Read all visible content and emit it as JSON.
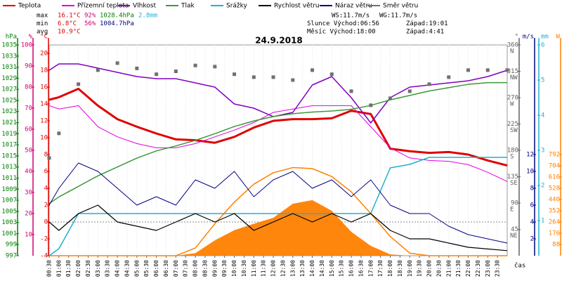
{
  "chart_data": {
    "type": "weather",
    "title": "24.9.2018",
    "x_label": "čas",
    "xlim": [
      0.5,
      24
    ],
    "x": [
      0.5,
      1,
      2,
      3,
      4,
      5,
      6,
      7,
      8,
      9,
      10,
      11,
      12,
      13,
      14,
      15,
      16,
      17,
      18,
      19,
      20,
      21,
      22,
      23,
      24
    ],
    "xticks": [
      {
        "value": 0.5,
        "label": "00:30"
      },
      {
        "value": 1,
        "label": "01:00"
      },
      {
        "value": 1.5,
        "label": "01:30"
      },
      {
        "value": 2,
        "label": "02:00"
      },
      {
        "value": 2.5,
        "label": "02:30"
      },
      {
        "value": 3,
        "label": "03:00"
      },
      {
        "value": 3.5,
        "label": "03:30"
      },
      {
        "value": 4,
        "label": "04:00"
      },
      {
        "value": 4.5,
        "label": "04:30"
      },
      {
        "value": 5,
        "label": "05:00"
      },
      {
        "value": 5.5,
        "label": "05:30"
      },
      {
        "value": 6,
        "label": "06:00"
      },
      {
        "value": 6.5,
        "label": "06:30"
      },
      {
        "value": 7,
        "label": "07:00"
      },
      {
        "value": 7.5,
        "label": "07:30"
      },
      {
        "value": 8,
        "label": "08:00"
      },
      {
        "value": 8.5,
        "label": "08:30"
      },
      {
        "value": 9,
        "label": "09:00"
      },
      {
        "value": 9.5,
        "label": "09:30"
      },
      {
        "value": 10,
        "label": "10:00"
      },
      {
        "value": 10.5,
        "label": "10:30"
      },
      {
        "value": 11,
        "label": "11:00"
      },
      {
        "value": 11.5,
        "label": "11:30"
      },
      {
        "value": 12,
        "label": "12:00"
      },
      {
        "value": 12.5,
        "label": "12:30"
      },
      {
        "value": 13,
        "label": "13:00"
      },
      {
        "value": 13.5,
        "label": "13:30"
      },
      {
        "value": 14,
        "label": "14:00"
      },
      {
        "value": 14.5,
        "label": "14:30"
      },
      {
        "value": 15,
        "label": "15:00"
      },
      {
        "value": 15.5,
        "label": "15:30"
      },
      {
        "value": 16,
        "label": "16:00"
      },
      {
        "value": 16.5,
        "label": "16:30"
      },
      {
        "value": 17,
        "label": "17:00"
      },
      {
        "value": 17.5,
        "label": "17:30"
      },
      {
        "value": 18,
        "label": "18:00"
      },
      {
        "value": 18.5,
        "label": "18:30"
      },
      {
        "value": 19,
        "label": "19:00"
      },
      {
        "value": 19.5,
        "label": "19:30"
      },
      {
        "value": 20,
        "label": "20:00"
      },
      {
        "value": 20.5,
        "label": "20:30"
      },
      {
        "value": 21,
        "label": "21:00"
      },
      {
        "value": 21.5,
        "label": "21:30"
      },
      {
        "value": 22,
        "label": "22:00"
      },
      {
        "value": 22.5,
        "label": "22:30"
      },
      {
        "value": 23,
        "label": "23:00"
      },
      {
        "value": 23.5,
        "label": "23:30"
      }
    ],
    "grid": true,
    "axes": [
      {
        "unit": "hPa",
        "color": "#008000",
        "lim": [
          997,
          1035
        ],
        "ticks": [
          997,
          999,
          1001,
          1003,
          1005,
          1007,
          1009,
          1011,
          1013,
          1015,
          1017,
          1019,
          1021,
          1023,
          1025,
          1027,
          1029,
          1031,
          1033,
          1035
        ]
      },
      {
        "unit": "%",
        "color": "#d0006f",
        "lim": [
          0,
          100
        ],
        "ticks": [
          10,
          20,
          30,
          40,
          50,
          60,
          70,
          80,
          90,
          100
        ]
      },
      {
        "unit": "°C",
        "color": "#e00000",
        "lim": [
          -4,
          21
        ],
        "ticks": [
          -4,
          -2,
          0,
          2,
          4,
          6,
          8,
          10,
          12,
          14,
          16,
          18,
          20
        ]
      },
      {
        "unit": "°",
        "color": "#606060",
        "lim": [
          0,
          360
        ],
        "ticks": [
          {
            "value": 45,
            "label": "NE"
          },
          {
            "value": 90,
            "label": "E"
          },
          {
            "value": 135,
            "label": "SE"
          },
          {
            "value": 180,
            "label": "S"
          },
          {
            "value": 225,
            "label": "SW"
          },
          {
            "value": 270,
            "label": "W"
          },
          {
            "value": 315,
            "label": "NW"
          },
          {
            "value": 360,
            "label": "N"
          }
        ]
      },
      {
        "unit": "m/s",
        "color": "#000080",
        "lim": [
          0,
          25
        ],
        "ticks": [
          2,
          4,
          6,
          8,
          10,
          12
        ]
      },
      {
        "unit": "mm",
        "color": "#20b0d0",
        "lim": [
          0,
          6
        ],
        "ticks": [
          1,
          2,
          3,
          4,
          5,
          6
        ]
      },
      {
        "unit": "W",
        "color": "#ff8000",
        "lim": [
          0,
          1650
        ],
        "ticks": [
          88,
          176,
          264,
          352,
          440,
          528,
          616,
          704,
          792
        ]
      }
    ],
    "series": [
      {
        "kind": "area",
        "color": "#ff8000",
        "axis": 6,
        "values": [
          0,
          0,
          0,
          0,
          0,
          0,
          0,
          0,
          20,
          120,
          200,
          250,
          297,
          407,
          435,
          352,
          187,
          77,
          10,
          0,
          0,
          0,
          0,
          0,
          0
        ]
      },
      {
        "kind": "line",
        "color": "#ff8000",
        "axis": 6,
        "values": [
          0,
          0,
          0,
          0,
          0,
          0,
          0,
          0,
          60,
          250,
          420,
          560,
          650,
          690,
          682,
          620,
          500,
          330,
          150,
          20,
          0,
          0,
          0,
          0,
          0
        ]
      },
      {
        "name": "Teplota",
        "kind": "line",
        "color": "#e00000",
        "axis": 2,
        "width": 3,
        "values": [
          14.5,
          14.8,
          15.8,
          13.8,
          12.2,
          11.3,
          10.5,
          9.8,
          9.7,
          9.4,
          10.1,
          11.2,
          12,
          12.2,
          12.2,
          12.3,
          13.2,
          12.8,
          8.7,
          8.4,
          8.2,
          8.3,
          8,
          7.3,
          6.7
        ]
      },
      {
        "name": "Přízemní teplota",
        "kind": "line",
        "color": "#e000e0",
        "axis": 2,
        "width": 1,
        "values": [
          13.8,
          13.4,
          13.8,
          11.3,
          10.1,
          9.3,
          8.8,
          8.8,
          9.3,
          10.1,
          10.9,
          11.8,
          13,
          13.4,
          13.8,
          13.8,
          13.8,
          11.3,
          8.8,
          7.6,
          7.3,
          7.2,
          6.8,
          5.9,
          4.8
        ]
      },
      {
        "name": "Vlhkost",
        "kind": "line",
        "color": "#8000c0",
        "axis": 1,
        "width": 1.5,
        "values": [
          88,
          91,
          91,
          89,
          87,
          85,
          84,
          84,
          82,
          80,
          72,
          70,
          66,
          68,
          81,
          85,
          75,
          63,
          75,
          80,
          81,
          82,
          83,
          85,
          88
        ]
      },
      {
        "name": "Tlak",
        "kind": "line",
        "color": "#3a9a3a",
        "axis": 0,
        "width": 1.5,
        "values": [
          1006.4,
          1007.6,
          1009.5,
          1011.4,
          1013,
          1014.6,
          1015.9,
          1016.8,
          1017.8,
          1019,
          1020.3,
          1021.3,
          1022.1,
          1022.6,
          1022.9,
          1023.1,
          1023.4,
          1024.1,
          1025.1,
          1025.9,
          1026.7,
          1027.3,
          1027.9,
          1028.2,
          1028.2
        ]
      },
      {
        "name": "Srážky",
        "kind": "line",
        "color": "#20b0d0",
        "axis": 5,
        "width": 1.5,
        "values": [
          0,
          0.2,
          1.2,
          1.2,
          1.2,
          1.2,
          1.2,
          1.2,
          1.2,
          1.2,
          1.2,
          1.2,
          1.2,
          1.2,
          1.2,
          1.2,
          1.2,
          1.2,
          2.5,
          2.6,
          2.8,
          2.8,
          2.8,
          2.8,
          2.8
        ]
      },
      {
        "name": "Rychlost větru",
        "kind": "line",
        "color": "#000000",
        "axis": 4,
        "width": 1.2,
        "values": [
          4,
          3,
          5,
          6,
          4,
          3.5,
          3,
          4,
          5,
          4,
          5,
          3,
          4,
          5,
          4,
          5,
          4,
          5,
          3,
          2,
          2,
          1.5,
          1,
          0.8,
          0.6
        ]
      },
      {
        "name": "Náraz větru",
        "kind": "line",
        "color": "#000080",
        "axis": 4,
        "width": 1,
        "values": [
          6,
          8,
          11,
          10,
          8,
          6,
          7,
          6,
          9,
          8,
          10,
          7,
          9,
          10,
          8,
          9,
          7,
          9,
          6,
          5,
          5,
          3.5,
          2.5,
          2,
          1.5
        ]
      },
      {
        "name": "Směr větru",
        "kind": "points",
        "color": "#707070",
        "axis": 3,
        "values": [
          167,
          209,
          293,
          317,
          329,
          320,
          310,
          315,
          325,
          323,
          310,
          305,
          305,
          300,
          317,
          310,
          281,
          257,
          269,
          281,
          293,
          305,
          317,
          317,
          317
        ]
      }
    ],
    "stats": [
      [
        {
          "text": "max",
          "color": "#000000"
        },
        {
          "text": "16.1°C",
          "color": "#e00000"
        },
        {
          "text": "92%",
          "color": "#d0006f"
        },
        {
          "text": "1028.4hPa",
          "color": "#008000"
        },
        {
          "text": "2.8mm",
          "color": "#20b0d0"
        }
      ],
      [
        {
          "text": "min",
          "color": "#000000"
        },
        {
          "text": "6.8°C",
          "color": "#e00000"
        },
        {
          "text": "56%",
          "color": "#d0006f"
        },
        {
          "text": "1004.7hPa",
          "color": "#000080"
        }
      ],
      [
        {
          "text": "avg",
          "color": "#000000"
        },
        {
          "text": "10.9°C",
          "color": "#e00000"
        }
      ]
    ],
    "info": [
      [
        "WS:11.7m/s",
        "WG:11.7m/s"
      ],
      [
        "Slunce Východ:06:56",
        "Západ:19:01"
      ],
      [
        "Měsíc Východ:18:00",
        "Západ:4:41"
      ]
    ]
  }
}
